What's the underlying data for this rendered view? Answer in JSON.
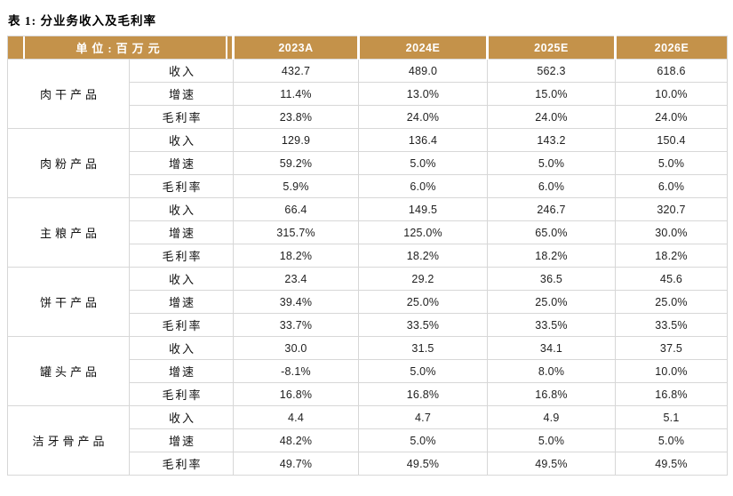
{
  "title": "表 1: 分业务收入及毛利率",
  "table": {
    "unit_header": "单位:百万元",
    "year_columns": [
      "2023A",
      "2024E",
      "2025E",
      "2026E"
    ],
    "metric_labels": [
      "收入",
      "增速",
      "毛利率"
    ],
    "groups": [
      {
        "name": "肉干产品",
        "rows": [
          [
            "432.7",
            "489.0",
            "562.3",
            "618.6"
          ],
          [
            "11.4%",
            "13.0%",
            "15.0%",
            "10.0%"
          ],
          [
            "23.8%",
            "24.0%",
            "24.0%",
            "24.0%"
          ]
        ]
      },
      {
        "name": "肉粉产品",
        "rows": [
          [
            "129.9",
            "136.4",
            "143.2",
            "150.4"
          ],
          [
            "59.2%",
            "5.0%",
            "5.0%",
            "5.0%"
          ],
          [
            "5.9%",
            "6.0%",
            "6.0%",
            "6.0%"
          ]
        ]
      },
      {
        "name": "主粮产品",
        "rows": [
          [
            "66.4",
            "149.5",
            "246.7",
            "320.7"
          ],
          [
            "315.7%",
            "125.0%",
            "65.0%",
            "30.0%"
          ],
          [
            "18.2%",
            "18.2%",
            "18.2%",
            "18.2%"
          ]
        ]
      },
      {
        "name": "饼干产品",
        "rows": [
          [
            "23.4",
            "29.2",
            "36.5",
            "45.6"
          ],
          [
            "39.4%",
            "25.0%",
            "25.0%",
            "25.0%"
          ],
          [
            "33.7%",
            "33.5%",
            "33.5%",
            "33.5%"
          ]
        ]
      },
      {
        "name": "罐头产品",
        "rows": [
          [
            "30.0",
            "31.5",
            "34.1",
            "37.5"
          ],
          [
            "-8.1%",
            "5.0%",
            "8.0%",
            "10.0%"
          ],
          [
            "16.8%",
            "16.8%",
            "16.8%",
            "16.8%"
          ]
        ]
      },
      {
        "name": "洁牙骨产品",
        "rows": [
          [
            "4.4",
            "4.7",
            "4.9",
            "5.1"
          ],
          [
            "48.2%",
            "5.0%",
            "5.0%",
            "5.0%"
          ],
          [
            "49.7%",
            "49.5%",
            "49.5%",
            "49.5%"
          ]
        ]
      }
    ]
  },
  "colors": {
    "header_bg": "#C4924A",
    "header_text": "#FFFFFF",
    "border": "#D7D7D7",
    "body_text": "#1F1F1F"
  }
}
